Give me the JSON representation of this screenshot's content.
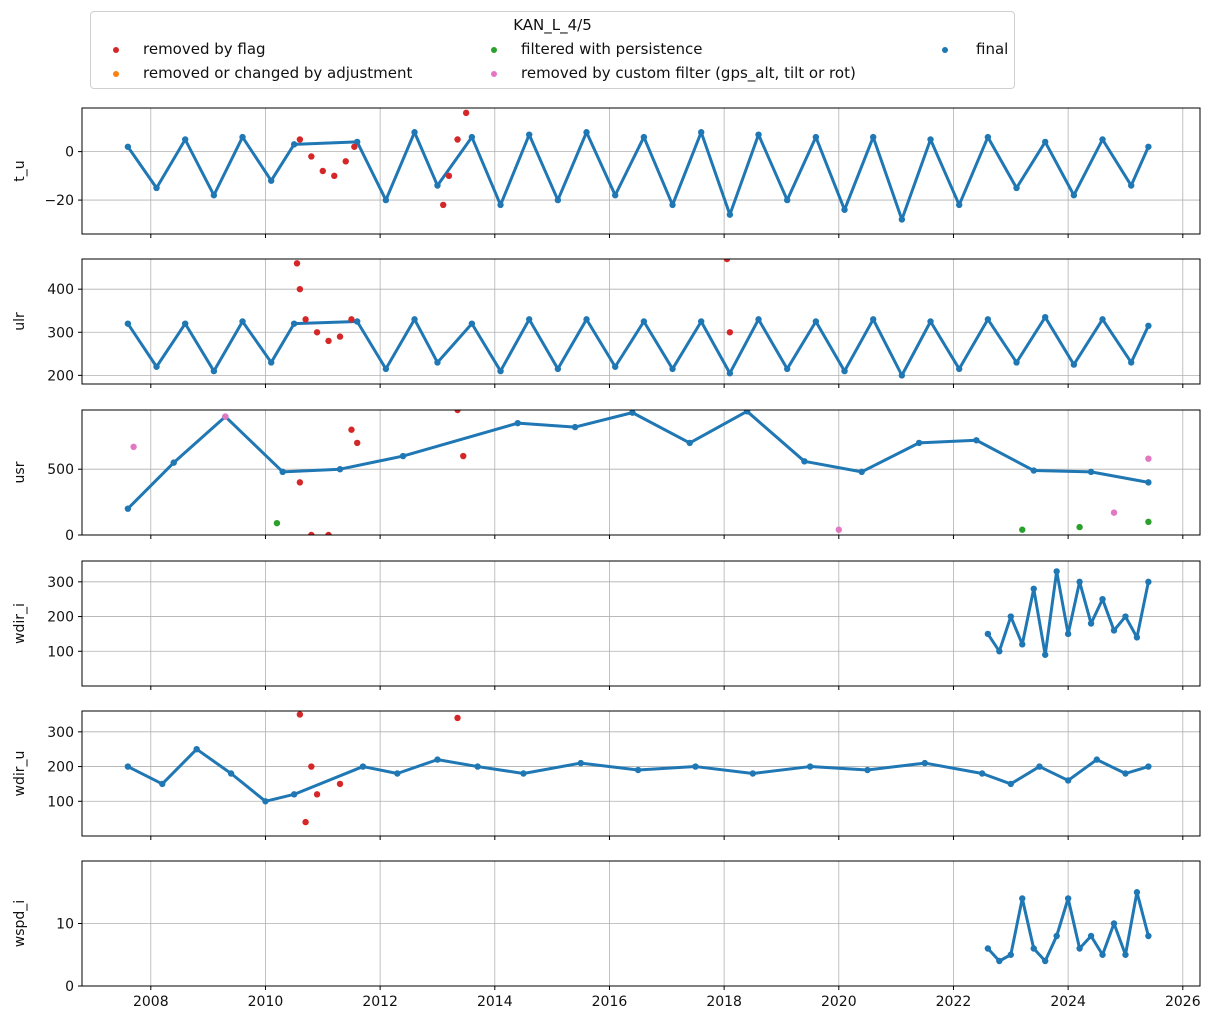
{
  "chart_data": {
    "type": "scatter",
    "title": "KAN_L_4/5",
    "legend": {
      "position": "top",
      "entries": [
        {
          "name": "removed by flag",
          "color": "#d62728"
        },
        {
          "name": "removed or changed by adjustment",
          "color": "#ff7f0e"
        },
        {
          "name": "filtered with persistence",
          "color": "#2ca02c"
        },
        {
          "name": "removed by custom filter (gps_alt, tilt or rot)",
          "color": "#e377c2"
        },
        {
          "name": "final",
          "color": "#1f77b4"
        }
      ]
    },
    "x_axis": {
      "range": [
        2006.8,
        2026.3
      ],
      "ticks": [
        2008,
        2010,
        2012,
        2014,
        2016,
        2018,
        2020,
        2022,
        2024,
        2026
      ],
      "tick_labels": [
        "2008",
        "2010",
        "2012",
        "2014",
        "2016",
        "2018",
        "2020",
        "2022",
        "2024",
        "2026"
      ]
    },
    "grid": true,
    "panels": [
      {
        "ylabel": "t_u",
        "ylim": [
          -34,
          18
        ],
        "yticks": [
          -20,
          0
        ],
        "final": {
          "x": [
            2007.6,
            2008.1,
            2008.6,
            2009.1,
            2009.6,
            2010.1,
            2010.5,
            2011.6,
            2012.1,
            2012.6,
            2013.0,
            2013.6,
            2014.1,
            2014.6,
            2015.1,
            2015.6,
            2016.1,
            2016.6,
            2017.1,
            2017.6,
            2018.1,
            2018.6,
            2019.1,
            2019.6,
            2020.1,
            2020.6,
            2021.1,
            2021.6,
            2022.1,
            2022.6,
            2023.1,
            2023.6,
            2024.1,
            2024.6,
            2025.1,
            2025.4
          ],
          "y": [
            2,
            -15,
            5,
            -18,
            6,
            -12,
            3,
            4,
            -20,
            8,
            -14,
            6,
            -22,
            7,
            -20,
            8,
            -18,
            6,
            -22,
            8,
            -26,
            7,
            -20,
            6,
            -24,
            6,
            -28,
            5,
            -22,
            6,
            -15,
            4,
            -18,
            5,
            -14,
            2
          ]
        },
        "removed_by_flag": {
          "x": [
            2010.6,
            2010.8,
            2011.0,
            2011.2,
            2011.4,
            2011.55,
            2013.1,
            2013.2,
            2013.35,
            2013.5
          ],
          "y": [
            5,
            -2,
            -8,
            -10,
            -4,
            2,
            -22,
            -10,
            5,
            16
          ]
        }
      },
      {
        "ylabel": "ulr",
        "ylim": [
          180,
          470
        ],
        "yticks": [
          200,
          300,
          400
        ],
        "final": {
          "x": [
            2007.6,
            2008.1,
            2008.6,
            2009.1,
            2009.6,
            2010.1,
            2010.5,
            2011.6,
            2012.1,
            2012.6,
            2013.0,
            2013.6,
            2014.1,
            2014.6,
            2015.1,
            2015.6,
            2016.1,
            2016.6,
            2017.1,
            2017.6,
            2018.1,
            2018.6,
            2019.1,
            2019.6,
            2020.1,
            2020.6,
            2021.1,
            2021.6,
            2022.1,
            2022.6,
            2023.1,
            2023.6,
            2024.1,
            2024.6,
            2025.1,
            2025.4
          ],
          "y": [
            320,
            220,
            320,
            210,
            325,
            230,
            320,
            325,
            215,
            330,
            230,
            320,
            210,
            330,
            215,
            330,
            220,
            325,
            215,
            325,
            205,
            330,
            215,
            325,
            210,
            330,
            200,
            325,
            215,
            330,
            230,
            335,
            225,
            330,
            230,
            315
          ]
        },
        "removed_by_flag": {
          "x": [
            2010.55,
            2010.6,
            2010.7,
            2010.9,
            2011.1,
            2011.3,
            2011.5,
            2018.05,
            2018.1
          ],
          "y": [
            460,
            400,
            330,
            300,
            280,
            290,
            330,
            470,
            300
          ]
        }
      },
      {
        "ylabel": "usr",
        "ylim": [
          0,
          950
        ],
        "yticks": [
          0,
          500
        ],
        "final": {
          "x": [
            2007.6,
            2008.4,
            2009.3,
            2010.3,
            2011.3,
            2012.4,
            2014.4,
            2015.4,
            2016.4,
            2017.4,
            2018.4,
            2019.4,
            2020.4,
            2021.4,
            2022.4,
            2023.4,
            2024.4,
            2025.4
          ],
          "y": [
            200,
            550,
            900,
            480,
            500,
            600,
            850,
            820,
            930,
            700,
            940,
            560,
            480,
            700,
            720,
            490,
            480,
            400
          ]
        },
        "removed_by_flag": {
          "x": [
            2010.6,
            2010.8,
            2011.1,
            2011.5,
            2011.6,
            2013.35,
            2013.45
          ],
          "y": [
            400,
            0,
            0,
            800,
            700,
            950,
            600
          ]
        },
        "filtered_with_persistence": {
          "x": [
            2010.2,
            2023.2,
            2024.2,
            2025.4
          ],
          "y": [
            90,
            40,
            60,
            100
          ]
        },
        "removed_by_custom_filter": {
          "x": [
            2007.7,
            2009.3,
            2020.0,
            2024.8,
            2025.4
          ],
          "y": [
            670,
            900,
            40,
            170,
            580
          ]
        }
      },
      {
        "ylabel": "wdir_i",
        "ylim": [
          0,
          360
        ],
        "yticks": [
          100,
          200,
          300
        ],
        "final": {
          "x": [
            2022.6,
            2022.8,
            2023.0,
            2023.2,
            2023.4,
            2023.6,
            2023.8,
            2024.0,
            2024.2,
            2024.4,
            2024.6,
            2024.8,
            2025.0,
            2025.2,
            2025.4
          ],
          "y": [
            150,
            100,
            200,
            120,
            280,
            90,
            330,
            150,
            300,
            180,
            250,
            160,
            200,
            140,
            300
          ]
        }
      },
      {
        "ylabel": "wdir_u",
        "ylim": [
          0,
          360
        ],
        "yticks": [
          100,
          200,
          300
        ],
        "final": {
          "x": [
            2007.6,
            2008.2,
            2008.8,
            2009.4,
            2010.0,
            2010.5,
            2011.7,
            2012.3,
            2013.0,
            2013.7,
            2014.5,
            2015.5,
            2016.5,
            2017.5,
            2018.5,
            2019.5,
            2020.5,
            2021.5,
            2022.5,
            2023.0,
            2023.5,
            2024.0,
            2024.5,
            2025.0,
            2025.4
          ],
          "y": [
            200,
            150,
            250,
            180,
            100,
            120,
            200,
            180,
            220,
            200,
            180,
            210,
            190,
            200,
            180,
            200,
            190,
            210,
            180,
            150,
            200,
            160,
            220,
            180,
            200
          ]
        },
        "removed_by_flag": {
          "x": [
            2010.6,
            2010.7,
            2010.8,
            2010.9,
            2011.3,
            2013.35
          ],
          "y": [
            350,
            40,
            200,
            120,
            150,
            340
          ]
        }
      },
      {
        "ylabel": "wspd_i",
        "ylim": [
          0,
          20
        ],
        "yticks": [
          0,
          10
        ],
        "final": {
          "x": [
            2022.6,
            2022.8,
            2023.0,
            2023.2,
            2023.4,
            2023.6,
            2023.8,
            2024.0,
            2024.2,
            2024.4,
            2024.6,
            2024.8,
            2025.0,
            2025.2,
            2025.4
          ],
          "y": [
            6,
            4,
            5,
            14,
            6,
            4,
            8,
            14,
            6,
            8,
            5,
            10,
            5,
            15,
            8
          ]
        }
      }
    ]
  }
}
